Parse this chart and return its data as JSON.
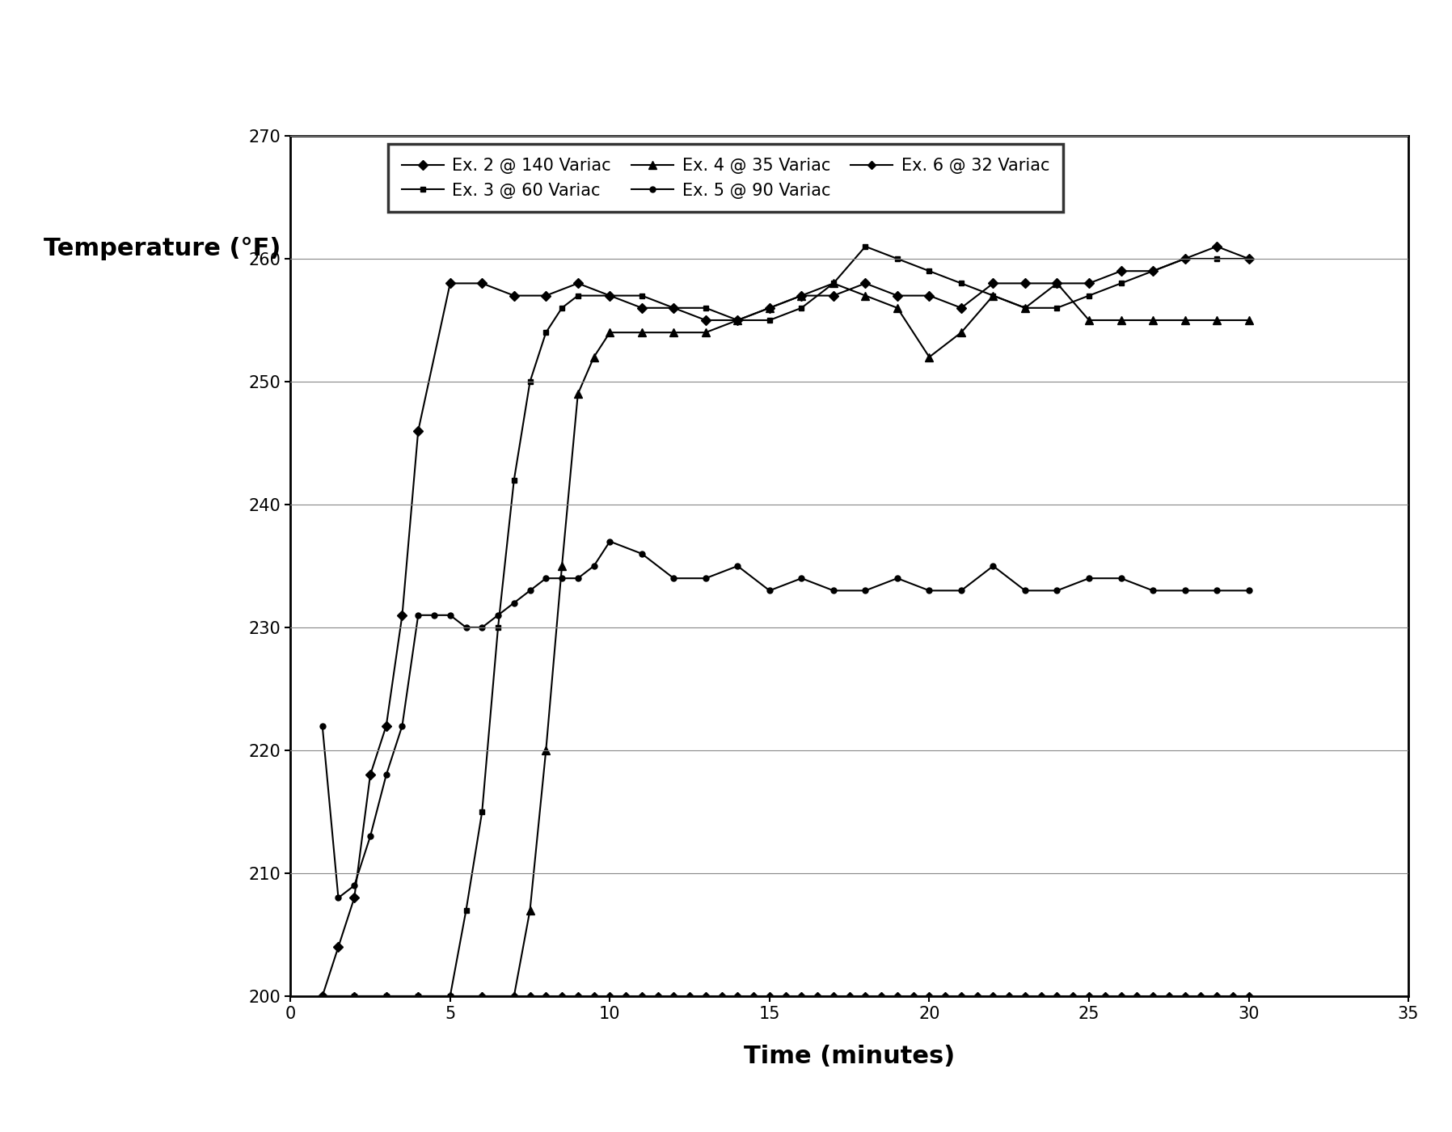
{
  "xlabel": "Time (minutes)",
  "ylabel": "Temperature (°F)",
  "xlim": [
    0,
    35
  ],
  "ylim": [
    200,
    270
  ],
  "xticks": [
    0,
    5,
    10,
    15,
    20,
    25,
    30,
    35
  ],
  "yticks": [
    200,
    210,
    220,
    230,
    240,
    250,
    260,
    270
  ],
  "figsize": [
    17.96,
    14.0
  ],
  "dpi": 100,
  "series": [
    {
      "label": "Ex. 2 @ 140 Variac",
      "marker": "D",
      "markersize": 6,
      "x": [
        1,
        1.5,
        2,
        2.5,
        3,
        3.5,
        4,
        5,
        6,
        7,
        8,
        9,
        10,
        11,
        12,
        13,
        14,
        15,
        16,
        17,
        18,
        19,
        20,
        21,
        22,
        23,
        24,
        25,
        26,
        27,
        28,
        29,
        30
      ],
      "y": [
        200,
        204,
        208,
        218,
        222,
        231,
        246,
        258,
        258,
        257,
        257,
        258,
        257,
        256,
        256,
        255,
        255,
        256,
        257,
        257,
        258,
        257,
        257,
        256,
        258,
        258,
        258,
        258,
        259,
        259,
        260,
        261,
        260
      ]
    },
    {
      "label": "Ex. 3 @ 60 Variac",
      "marker": "s",
      "markersize": 5,
      "x": [
        1,
        2,
        3,
        4,
        5,
        5.5,
        6,
        6.5,
        7,
        7.5,
        8,
        8.5,
        9,
        10,
        11,
        12,
        13,
        14,
        15,
        16,
        17,
        18,
        19,
        20,
        21,
        22,
        23,
        24,
        25,
        26,
        27,
        28,
        29,
        30
      ],
      "y": [
        200,
        200,
        200,
        200,
        200,
        207,
        215,
        230,
        242,
        250,
        254,
        256,
        257,
        257,
        257,
        256,
        256,
        255,
        255,
        256,
        258,
        261,
        260,
        259,
        258,
        257,
        256,
        256,
        257,
        258,
        259,
        260,
        260,
        260
      ]
    },
    {
      "label": "Ex. 4 @ 35 Variac",
      "marker": "^",
      "markersize": 7,
      "x": [
        1,
        2,
        3,
        4,
        5,
        6,
        7,
        7.5,
        8,
        8.5,
        9,
        9.5,
        10,
        11,
        12,
        13,
        14,
        15,
        16,
        17,
        18,
        19,
        20,
        21,
        22,
        23,
        24,
        25,
        26,
        27,
        28,
        29,
        30
      ],
      "y": [
        200,
        200,
        200,
        200,
        200,
        200,
        200,
        207,
        220,
        235,
        249,
        252,
        254,
        254,
        254,
        254,
        255,
        256,
        257,
        258,
        257,
        256,
        252,
        254,
        257,
        256,
        258,
        255,
        255,
        255,
        255,
        255,
        255
      ]
    },
    {
      "label": "Ex. 5 @ 90 Variac",
      "marker": "o",
      "markersize": 5,
      "x": [
        1,
        1.5,
        2,
        2.5,
        3,
        3.5,
        4,
        4.5,
        5,
        5.5,
        6,
        6.5,
        7,
        7.5,
        8,
        8.5,
        9,
        9.5,
        10,
        11,
        12,
        13,
        14,
        15,
        16,
        17,
        18,
        19,
        20,
        21,
        22,
        23,
        24,
        25,
        26,
        27,
        28,
        29,
        30
      ],
      "y": [
        222,
        208,
        209,
        213,
        218,
        222,
        231,
        231,
        231,
        230,
        230,
        231,
        232,
        233,
        234,
        234,
        234,
        235,
        237,
        236,
        234,
        234,
        235,
        233,
        234,
        233,
        233,
        234,
        233,
        233,
        235,
        233,
        233,
        234,
        234,
        233,
        233,
        233,
        233
      ]
    },
    {
      "label": "Ex. 6 @ 32 Variac",
      "marker": "D",
      "markersize": 5,
      "x": [
        1,
        2,
        3,
        4,
        5,
        6,
        7,
        7.5,
        8,
        8.5,
        9,
        9.5,
        10,
        10.5,
        11,
        11.5,
        12,
        12.5,
        13,
        13.5,
        14,
        14.5,
        15,
        15.5,
        16,
        16.5,
        17,
        17.5,
        18,
        18.5,
        19,
        19.5,
        20,
        20.5,
        21,
        21.5,
        22,
        22.5,
        23,
        23.5,
        24,
        24.5,
        25,
        25.5,
        26,
        26.5,
        27,
        27.5,
        28,
        28.5,
        29,
        29.5,
        30
      ],
      "y": [
        200,
        200,
        200,
        200,
        200,
        200,
        200,
        200,
        200,
        200,
        200,
        200,
        200,
        200,
        200,
        200,
        200,
        200,
        200,
        200,
        200,
        200,
        200,
        200,
        200,
        200,
        200,
        200,
        200,
        200,
        200,
        200,
        200,
        200,
        200,
        200,
        200,
        200,
        200,
        200,
        200,
        200,
        200,
        200,
        200,
        200,
        200,
        200,
        200,
        200,
        200,
        200,
        200
      ]
    }
  ]
}
